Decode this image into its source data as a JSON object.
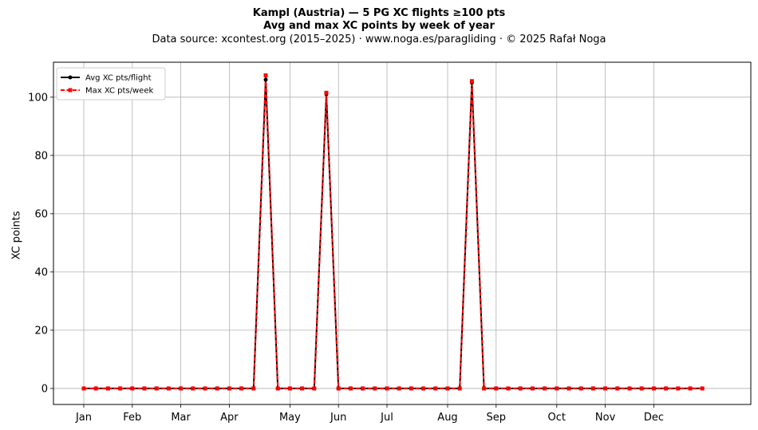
{
  "header": {
    "title_line1": "Kampl (Austria)  —  5 PG XC flights ≥100 pts",
    "title_line2": "Avg and max XC points by week of year",
    "subtitle": "Data source: xcontest.org (2015–2025)  ·  www.noga.es/paragliding  ·  © 2025 Rafał Noga"
  },
  "chart_data": {
    "type": "line",
    "title": "Kampl (Austria)  —  5 PG XC flights ≥100 pts",
    "subtitle": "Avg and max XC points by week of year",
    "xlabel": "",
    "ylabel": "XC points",
    "xlim": [
      -2.5,
      55
    ],
    "ylim": [
      -5.5,
      112
    ],
    "yticks": [
      0,
      20,
      40,
      60,
      80,
      100
    ],
    "xticks": [
      {
        "week": 0,
        "label": "Jan"
      },
      {
        "week": 4,
        "label": "Feb"
      },
      {
        "week": 8,
        "label": "Mar"
      },
      {
        "week": 12,
        "label": "Apr"
      },
      {
        "week": 17,
        "label": "May"
      },
      {
        "week": 21,
        "label": "Jun"
      },
      {
        "week": 25,
        "label": "Jul"
      },
      {
        "week": 30,
        "label": "Aug"
      },
      {
        "week": 34,
        "label": "Sep"
      },
      {
        "week": 39,
        "label": "Oct"
      },
      {
        "week": 43,
        "label": "Nov"
      },
      {
        "week": 47,
        "label": "Dec"
      }
    ],
    "grid": true,
    "legend_position": "top-left",
    "x": [
      0,
      1,
      2,
      3,
      4,
      5,
      6,
      7,
      8,
      9,
      10,
      11,
      12,
      13,
      14,
      15,
      16,
      17,
      18,
      19,
      20,
      21,
      22,
      23,
      24,
      25,
      26,
      27,
      28,
      29,
      30,
      31,
      32,
      33,
      34,
      35,
      36,
      37,
      38,
      39,
      40,
      41,
      42,
      43,
      44,
      45,
      46,
      47,
      48,
      49,
      50,
      51
    ],
    "series": [
      {
        "name": "Avg XC pts/flight",
        "color": "#000000",
        "style": "solid",
        "marker": "circle",
        "values": [
          0,
          0,
          0,
          0,
          0,
          0,
          0,
          0,
          0,
          0,
          0,
          0,
          0,
          0,
          0,
          106,
          0,
          0,
          0,
          0,
          101,
          0,
          0,
          0,
          0,
          0,
          0,
          0,
          0,
          0,
          0,
          0,
          105,
          0,
          0,
          0,
          0,
          0,
          0,
          0,
          0,
          0,
          0,
          0,
          0,
          0,
          0,
          0,
          0,
          0,
          0,
          0
        ]
      },
      {
        "name": "Max XC pts/week",
        "color": "#ff0000",
        "style": "dashed",
        "marker": "square",
        "values": [
          0,
          0,
          0,
          0,
          0,
          0,
          0,
          0,
          0,
          0,
          0,
          0,
          0,
          0,
          0,
          107.5,
          0,
          0,
          0,
          0,
          101.5,
          0,
          0,
          0,
          0,
          0,
          0,
          0,
          0,
          0,
          0,
          0,
          105.5,
          0,
          0,
          0,
          0,
          0,
          0,
          0,
          0,
          0,
          0,
          0,
          0,
          0,
          0,
          0,
          0,
          0,
          0,
          0
        ]
      }
    ]
  }
}
